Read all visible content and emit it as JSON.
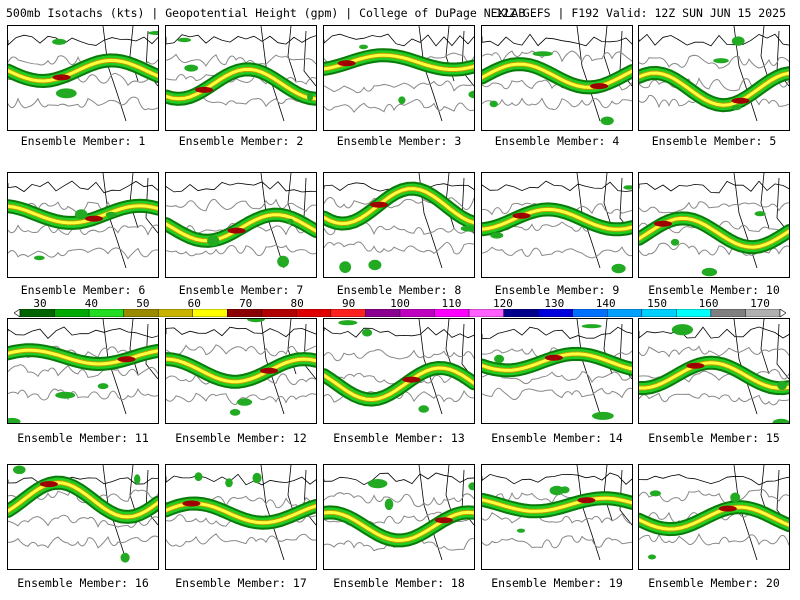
{
  "header": {
    "left": "500mb Isotachs (kts) | Geopotential Height (gpm) | College of DuPage NEXLAB",
    "right": "12Z GEFS | F192 Valid: 12Z SUN JUN 15 2025"
  },
  "panels": [
    {
      "label": "Ensemble Member: 1"
    },
    {
      "label": "Ensemble Member: 2"
    },
    {
      "label": "Ensemble Member: 3"
    },
    {
      "label": "Ensemble Member: 4"
    },
    {
      "label": "Ensemble Member: 5"
    },
    {
      "label": "Ensemble Member: 6"
    },
    {
      "label": "Ensemble Member: 7"
    },
    {
      "label": "Ensemble Member: 8"
    },
    {
      "label": "Ensemble Member: 9"
    },
    {
      "label": "Ensemble Member: 10"
    },
    {
      "label": "Ensemble Member: 11"
    },
    {
      "label": "Ensemble Member: 12"
    },
    {
      "label": "Ensemble Member: 13"
    },
    {
      "label": "Ensemble Member: 14"
    },
    {
      "label": "Ensemble Member: 15"
    },
    {
      "label": "Ensemble Member: 16"
    },
    {
      "label": "Ensemble Member: 17"
    },
    {
      "label": "Ensemble Member: 18"
    },
    {
      "label": "Ensemble Member: 19"
    },
    {
      "label": "Ensemble Member: 20"
    }
  ],
  "colorbar": {
    "labels": [
      "30",
      "40",
      "50",
      "60",
      "70",
      "80",
      "90",
      "100",
      "110",
      "120",
      "130",
      "140",
      "150",
      "160",
      "170"
    ],
    "colors": [
      "#006400",
      "#00aa00",
      "#22dd22",
      "#9a8a00",
      "#c8b400",
      "#ffff00",
      "#8b0000",
      "#b00000",
      "#e00000",
      "#ff2020",
      "#8a0090",
      "#c000c0",
      "#ff00ff",
      "#ff60ff",
      "#00008b",
      "#0000dd",
      "#0070ff",
      "#00a0ff",
      "#00d0ff",
      "#00ffff",
      "#808080",
      "#b0b0b0"
    ]
  }
}
